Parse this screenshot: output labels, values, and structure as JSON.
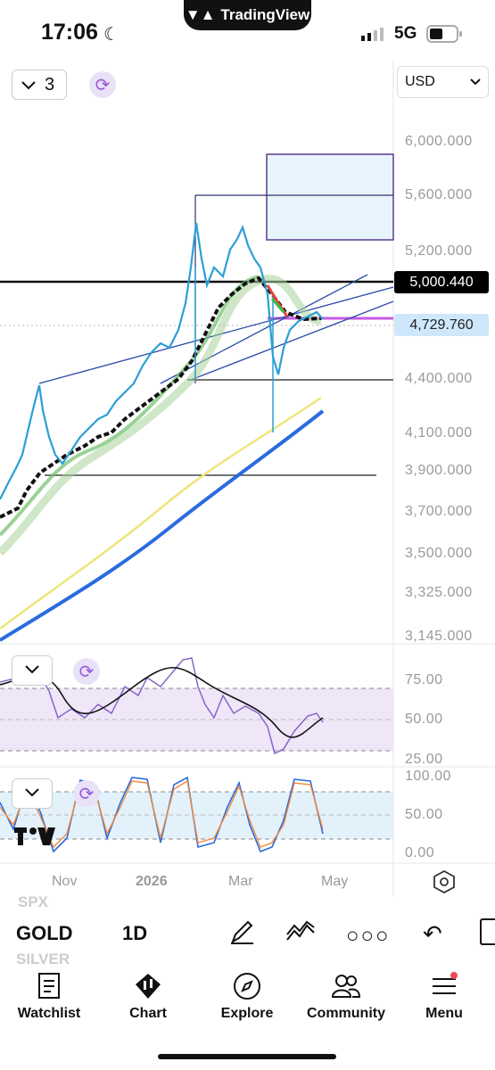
{
  "status_bar": {
    "time": "17:06",
    "network": "5G"
  },
  "island": {
    "brand": "TradingView"
  },
  "toolbar": {
    "interval": "3",
    "currency": "USD"
  },
  "price_axis": {
    "labels": [
      "6,000.000",
      "5,600.000",
      "5,200.000",
      "4,400.000",
      "4,100.000",
      "3,900.000",
      "3,700.000",
      "3,500.000",
      "3,325.000",
      "3,145.000"
    ]
  },
  "price_tags": {
    "level": "5,000.440",
    "last": "4,729.760"
  },
  "rsi_axis": {
    "labels": [
      "75.00",
      "50.00",
      "25.00"
    ]
  },
  "stoch_axis": {
    "labels": [
      "100.00",
      "50.00",
      "0.00"
    ]
  },
  "time_axis": {
    "labels": [
      "Nov",
      "2026",
      "Mar",
      "May"
    ]
  },
  "symbols": {
    "prev": "SPX",
    "current": "GOLD",
    "next": "SILVER",
    "timeframe": "1D"
  },
  "tabs": [
    {
      "label": "Watchlist",
      "icon": "watchlist-icon"
    },
    {
      "label": "Chart",
      "icon": "chart-icon"
    },
    {
      "label": "Explore",
      "icon": "compass-icon"
    },
    {
      "label": "Community",
      "icon": "community-icon"
    },
    {
      "label": "Menu",
      "icon": "menu-icon"
    }
  ],
  "colors": {
    "accent_purple": "#b35bdb",
    "rsi_band": "#efe6f8",
    "stoch_band": "#e3f1fb",
    "ma_blue": "#2a6be0",
    "ma_yellow": "#f0ea7a"
  }
}
